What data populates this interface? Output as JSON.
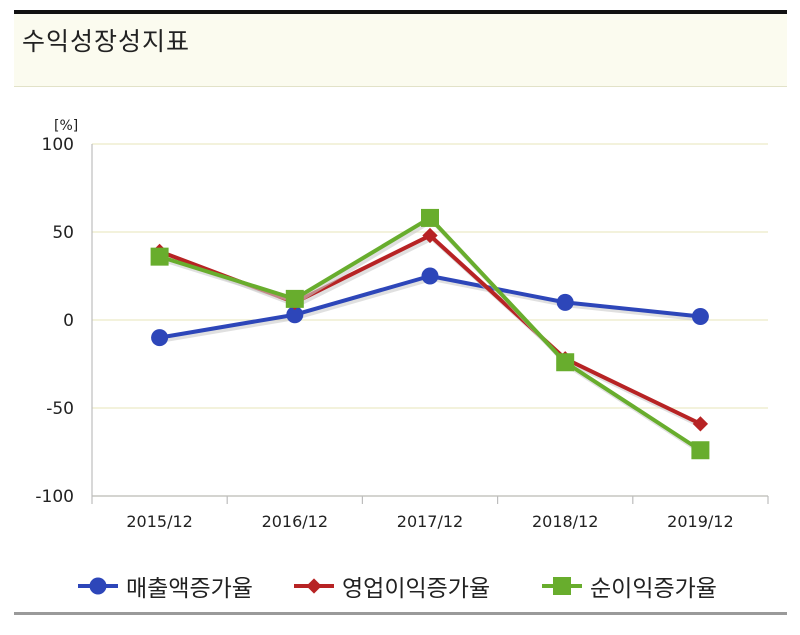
{
  "panel": {
    "title": "수익성장성지표"
  },
  "chart_data": {
    "type": "line",
    "categories": [
      "2015/12",
      "2016/12",
      "2017/12",
      "2018/12",
      "2019/12"
    ],
    "series": [
      {
        "name": "매출액증가율",
        "color": "#2d46b9",
        "marker": "circle",
        "values": [
          -10,
          3,
          25,
          10,
          2
        ]
      },
      {
        "name": "영업이익증가율",
        "color": "#b72324",
        "marker": "diamond",
        "values": [
          39,
          10,
          48,
          -22,
          -59
        ]
      },
      {
        "name": "순이익증가율",
        "color": "#68ad2d",
        "marker": "square",
        "values": [
          36,
          12,
          58,
          -24,
          -74
        ]
      }
    ],
    "y_unit": "[%]",
    "y_ticks": [
      "100",
      "50",
      "0",
      "-50",
      "-100"
    ],
    "ylim": [
      -100,
      100
    ],
    "grid": true,
    "legend_position": "bottom"
  }
}
